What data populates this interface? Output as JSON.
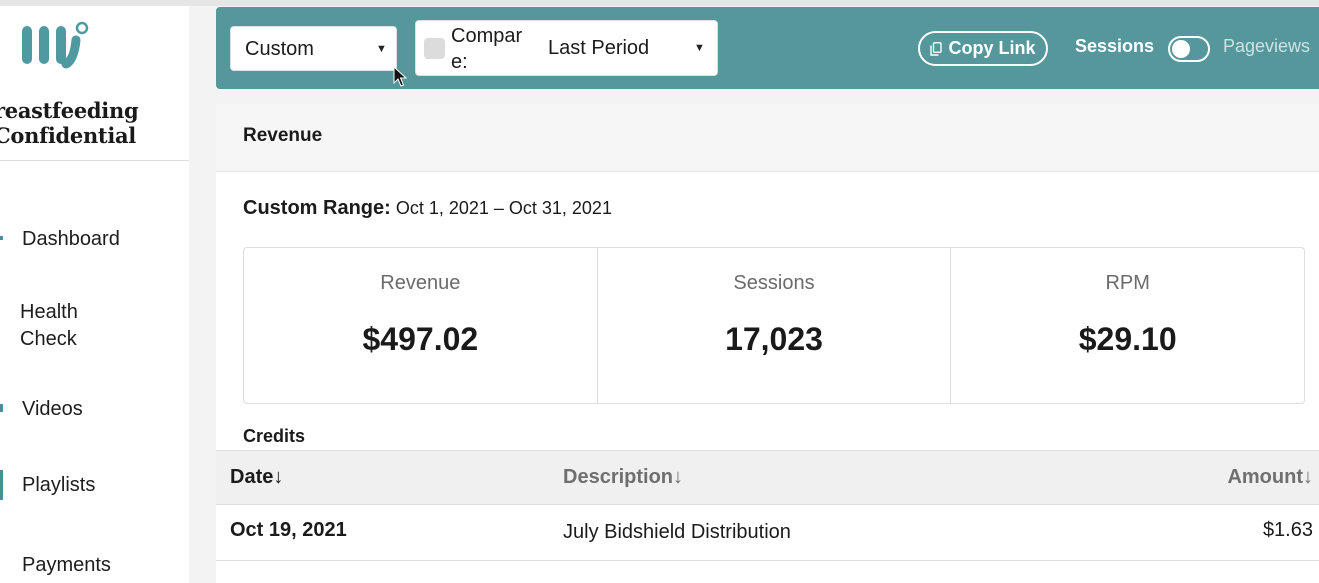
{
  "site": {
    "name": "reastfeeding\nConfidential",
    "accent_color": "#55979b"
  },
  "nav": {
    "items": [
      {
        "label": "Dashboard"
      },
      {
        "label": "Health\nCheck"
      },
      {
        "label": "Videos"
      },
      {
        "label": "Playlists"
      },
      {
        "label": "Payments"
      }
    ]
  },
  "toolbar": {
    "range_select": "Custom",
    "compare_label": "Compar\ne:",
    "compare_select": "Last Period",
    "copy_link": "Copy Link",
    "toggle_left": "Sessions",
    "toggle_right": "Pageviews"
  },
  "panel": {
    "title": "Revenue",
    "range_label": "Custom Range:",
    "range_value": "Oct 1, 2021 – Oct 31, 2021",
    "stats": [
      {
        "label": "Revenue",
        "value": "$497.02"
      },
      {
        "label": "Sessions",
        "value": "17,023"
      },
      {
        "label": "RPM",
        "value": "$29.10"
      }
    ],
    "credits_title": "Credits",
    "columns": {
      "date": "Date↓",
      "description": "Description↓",
      "amount": "Amount↓"
    },
    "rows": [
      {
        "date": "Oct 19, 2021",
        "description": "July Bidshield Distribution",
        "amount": "$1.63"
      }
    ]
  }
}
